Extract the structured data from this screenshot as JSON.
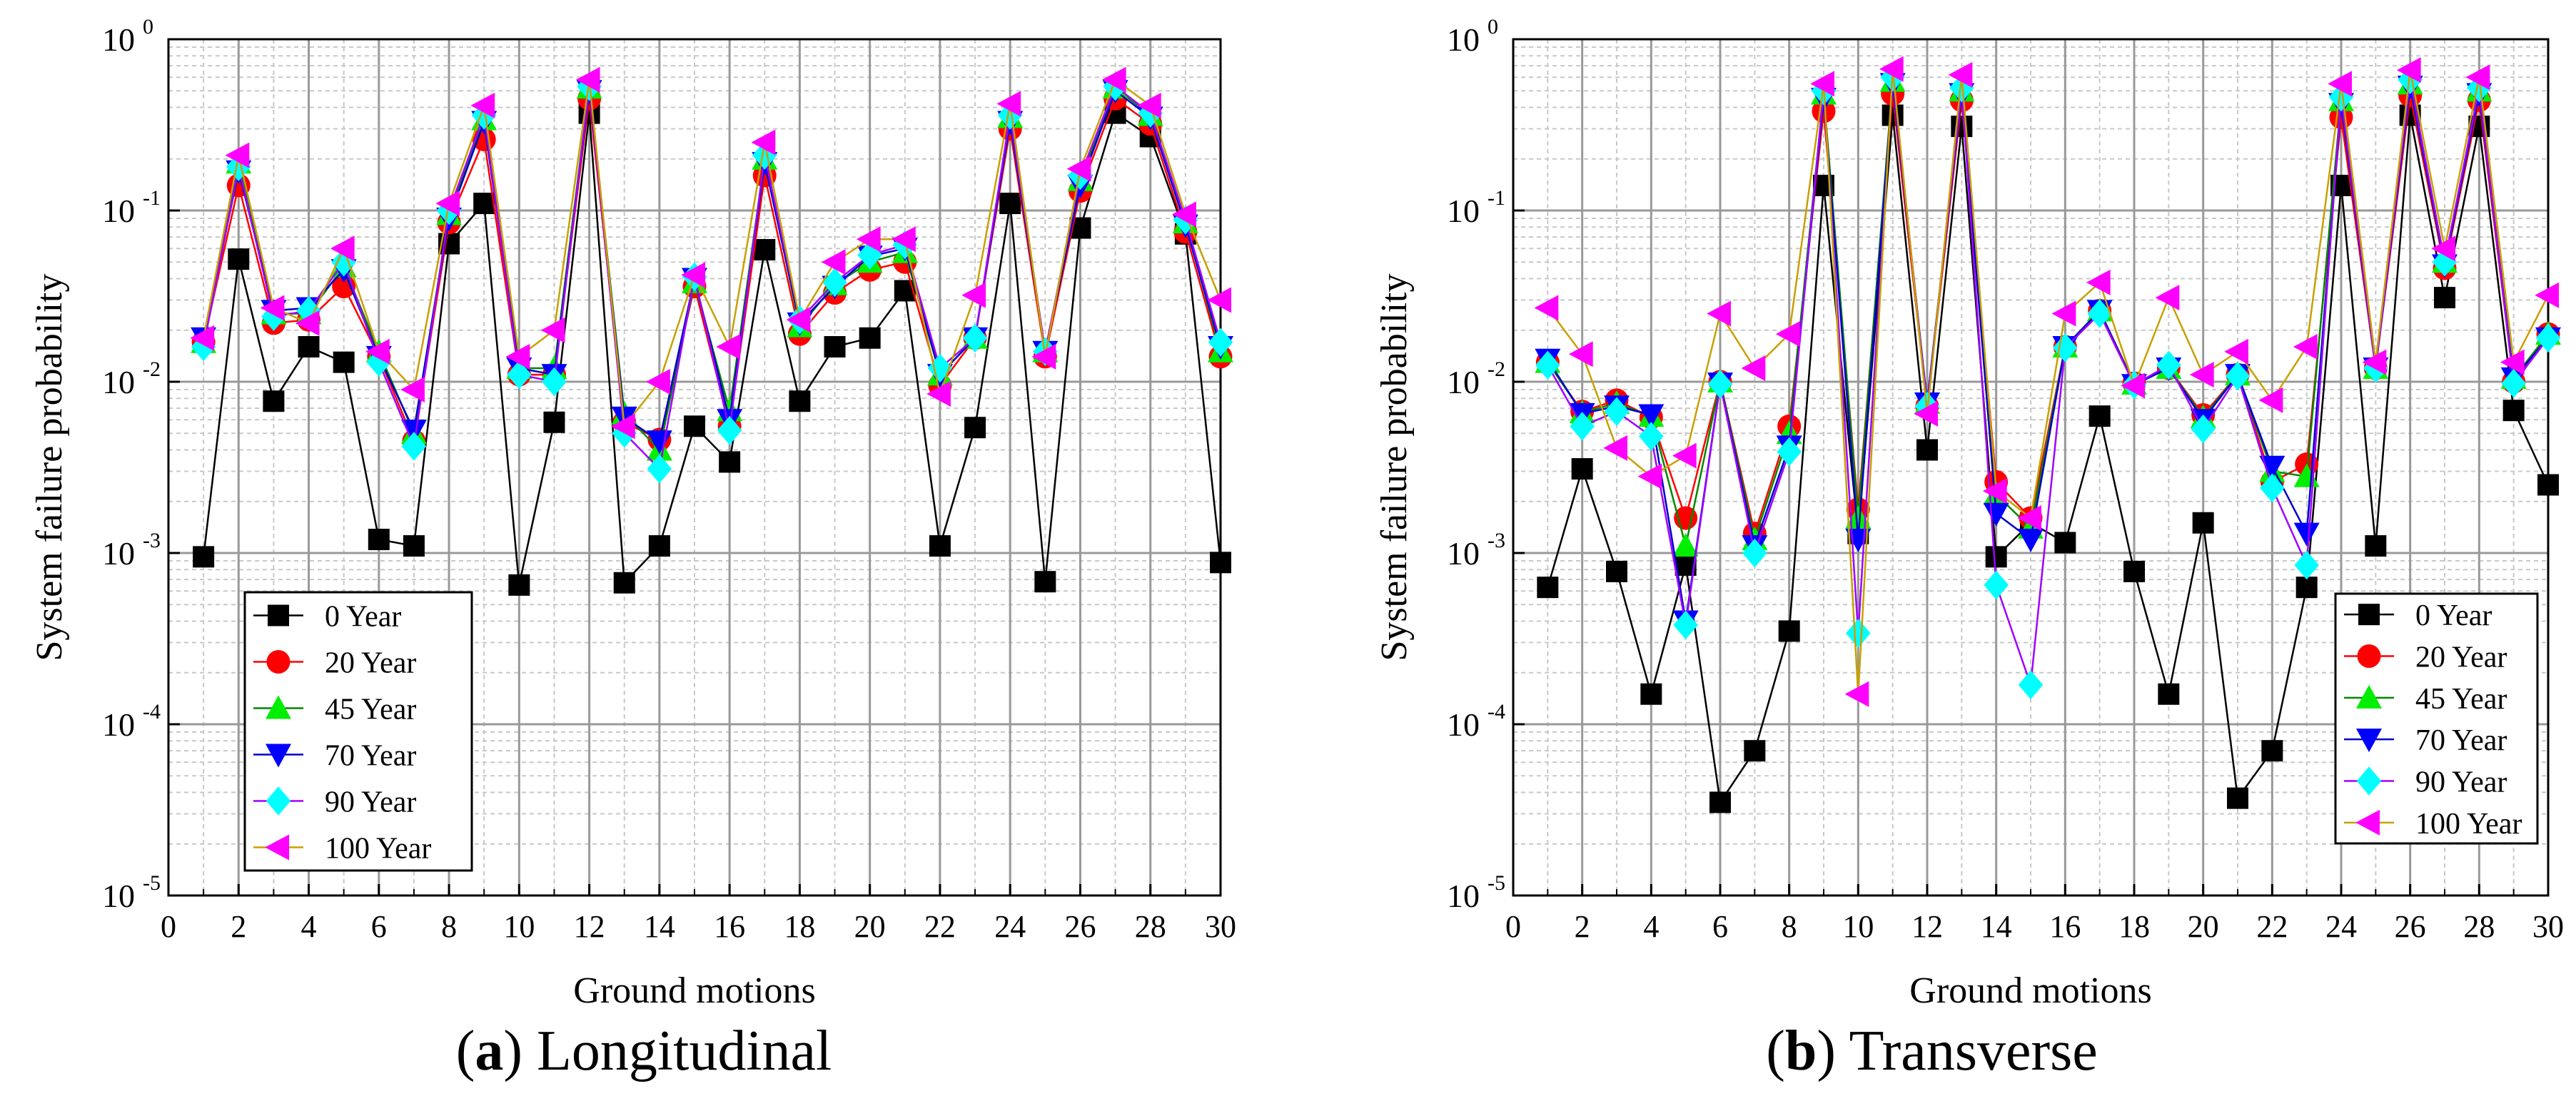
{
  "figure": {
    "panel_a_caption": {
      "letter": "a",
      "text": "Longitudinal"
    },
    "panel_b_caption": {
      "letter": "b",
      "text": "Transverse"
    }
  },
  "colors": {
    "0 Year": "#000000",
    "20 Year": "#ff0000",
    "45 Year": "#00ee00",
    "70 Year": "#0000ff",
    "90 Year": "#00ffff",
    "100 Year": "#ff00ff",
    "line_0 Year": "#000000",
    "line_20 Year": "#ff0000",
    "line_45 Year": "#008800",
    "line_70 Year": "#0000cc",
    "line_90 Year": "#a000ff",
    "line_100 Year": "#c8a000"
  },
  "chart_data": [
    {
      "type": "line",
      "panel": "a",
      "title": "",
      "xlabel": "Ground motions",
      "ylabel": "System failure probability",
      "xlim": [
        0,
        30
      ],
      "ylim": [
        1e-05,
        1
      ],
      "yscale": "log",
      "x_ticks": [
        0,
        2,
        4,
        6,
        8,
        10,
        12,
        14,
        16,
        18,
        20,
        22,
        24,
        26,
        28,
        30
      ],
      "y_tick_labels": [
        "10",
        "10",
        "10",
        "10",
        "10",
        "10"
      ],
      "y_tick_exponents": [
        "-5",
        "-4",
        "-3",
        "-2",
        "-1",
        "0"
      ],
      "y_tick_values": [
        1e-05,
        0.0001,
        0.001,
        0.01,
        0.1,
        1
      ],
      "grid": true,
      "legend": "bottom-left",
      "x": [
        1,
        2,
        3,
        4,
        5,
        6,
        7,
        8,
        9,
        10,
        11,
        12,
        13,
        14,
        15,
        16,
        17,
        18,
        19,
        20,
        21,
        22,
        23,
        24,
        25,
        26,
        27,
        28,
        29,
        30
      ],
      "series": [
        {
          "name": "0 Year",
          "marker": "square",
          "values": [
            0.00095,
            0.052,
            0.0077,
            0.016,
            0.013,
            0.0012,
            0.0011,
            0.064,
            0.11,
            0.00065,
            0.0058,
            0.37,
            0.00067,
            0.0011,
            0.0055,
            0.0034,
            0.059,
            0.0077,
            0.016,
            0.018,
            0.034,
            0.0011,
            0.0054,
            0.11,
            0.00068,
            0.079,
            0.37,
            0.27,
            0.073,
            0.00088
          ]
        },
        {
          "name": "20 Year",
          "marker": "circle",
          "values": [
            0.017,
            0.14,
            0.022,
            0.023,
            0.036,
            0.014,
            0.0045,
            0.085,
            0.26,
            0.011,
            0.011,
            0.45,
            0.0058,
            0.0046,
            0.036,
            0.0055,
            0.16,
            0.019,
            0.033,
            0.045,
            0.05,
            0.0095,
            0.018,
            0.3,
            0.014,
            0.13,
            0.45,
            0.32,
            0.075,
            0.014
          ]
        },
        {
          "name": "45 Year",
          "marker": "triangle-up",
          "values": [
            0.017,
            0.19,
            0.025,
            0.025,
            0.047,
            0.015,
            0.005,
            0.095,
            0.34,
            0.012,
            0.012,
            0.52,
            0.0065,
            0.004,
            0.038,
            0.0068,
            0.2,
            0.021,
            0.037,
            0.05,
            0.057,
            0.011,
            0.018,
            0.35,
            0.015,
            0.15,
            0.52,
            0.36,
            0.085,
            0.015
          ]
        },
        {
          "name": "70 Year",
          "marker": "triangle-down",
          "values": [
            0.018,
            0.17,
            0.026,
            0.027,
            0.045,
            0.014,
            0.0052,
            0.09,
            0.33,
            0.012,
            0.011,
            0.5,
            0.0062,
            0.0045,
            0.04,
            0.006,
            0.19,
            0.022,
            0.036,
            0.054,
            0.06,
            0.011,
            0.018,
            0.33,
            0.015,
            0.14,
            0.5,
            0.35,
            0.082,
            0.016
          ]
        },
        {
          "name": "90 Year",
          "marker": "diamond",
          "values": [
            0.016,
            0.18,
            0.024,
            0.026,
            0.05,
            0.013,
            0.0042,
            0.1,
            0.36,
            0.011,
            0.01,
            0.53,
            0.005,
            0.0031,
            0.041,
            0.0052,
            0.21,
            0.023,
            0.038,
            0.055,
            0.063,
            0.012,
            0.018,
            0.36,
            0.015,
            0.16,
            0.53,
            0.37,
            0.088,
            0.017
          ]
        },
        {
          "name": "100 Year",
          "marker": "triangle-left",
          "values": [
            0.018,
            0.21,
            0.027,
            0.022,
            0.06,
            0.015,
            0.009,
            0.11,
            0.41,
            0.014,
            0.02,
            0.58,
            0.0055,
            0.01,
            0.042,
            0.016,
            0.25,
            0.023,
            0.05,
            0.068,
            0.068,
            0.0085,
            0.032,
            0.42,
            0.014,
            0.175,
            0.58,
            0.41,
            0.095,
            0.03
          ]
        }
      ]
    },
    {
      "type": "line",
      "panel": "b",
      "title": "",
      "xlabel": "Ground motions",
      "ylabel": "System failure probability",
      "xlim": [
        0,
        30
      ],
      "ylim": [
        1e-05,
        1
      ],
      "yscale": "log",
      "x_ticks": [
        0,
        2,
        4,
        6,
        8,
        10,
        12,
        14,
        16,
        18,
        20,
        22,
        24,
        26,
        28,
        30
      ],
      "y_tick_labels": [
        "10",
        "10",
        "10",
        "10",
        "10",
        "10"
      ],
      "y_tick_exponents": [
        "-5",
        "-4",
        "-3",
        "-2",
        "-1",
        "0"
      ],
      "y_tick_values": [
        1e-05,
        0.0001,
        0.001,
        0.01,
        0.1,
        1
      ],
      "grid": true,
      "legend": "bottom-right",
      "x": [
        1,
        2,
        3,
        4,
        5,
        6,
        7,
        8,
        9,
        10,
        11,
        12,
        13,
        14,
        15,
        16,
        17,
        18,
        19,
        20,
        21,
        22,
        23,
        24,
        25,
        26,
        27,
        28,
        29,
        30
      ],
      "series": [
        {
          "name": "0 Year",
          "marker": "square",
          "values": [
            0.00063,
            0.0031,
            0.00078,
            0.00015,
            0.00085,
            3.5e-05,
            7e-05,
            0.00035,
            0.14,
            0.0013,
            0.36,
            0.004,
            0.31,
            0.00095,
            0.0015,
            0.00115,
            0.0063,
            0.00078,
            0.00015,
            0.0015,
            3.7e-05,
            7e-05,
            0.00063,
            0.14,
            0.0011,
            0.36,
            0.031,
            0.31,
            0.0068,
            0.0025
          ]
        },
        {
          "name": "20 Year",
          "marker": "circle",
          "values": [
            0.013,
            0.0067,
            0.0078,
            0.0062,
            0.0016,
            0.01,
            0.0013,
            0.0055,
            0.38,
            0.0018,
            0.48,
            0.0072,
            0.44,
            0.0026,
            0.0016,
            0.016,
            0.026,
            0.0098,
            0.012,
            0.0064,
            0.011,
            0.0026,
            0.0033,
            0.35,
            0.012,
            0.47,
            0.046,
            0.44,
            0.01,
            0.019
          ]
        },
        {
          "name": "45 Year",
          "marker": "triangle-up",
          "values": [
            0.013,
            0.0066,
            0.0075,
            0.0063,
            0.0011,
            0.01,
            0.0012,
            0.005,
            0.48,
            0.0016,
            0.57,
            0.0075,
            0.5,
            0.0022,
            0.0014,
            0.016,
            0.026,
            0.0097,
            0.012,
            0.0062,
            0.011,
            0.003,
            0.0028,
            0.44,
            0.012,
            0.55,
            0.05,
            0.5,
            0.0105,
            0.019
          ]
        },
        {
          "name": "70 Year",
          "marker": "triangle-down",
          "values": [
            0.0135,
            0.0065,
            0.0072,
            0.0064,
            0.0004,
            0.0098,
            0.0011,
            0.0042,
            0.45,
            0.0012,
            0.55,
            0.0075,
            0.48,
            0.0017,
            0.0012,
            0.016,
            0.026,
            0.0096,
            0.012,
            0.006,
            0.011,
            0.0032,
            0.0013,
            0.42,
            0.012,
            0.53,
            0.048,
            0.48,
            0.0105,
            0.018
          ]
        },
        {
          "name": "90 Year",
          "marker": "diamond",
          "values": [
            0.0125,
            0.0055,
            0.0067,
            0.0048,
            0.00038,
            0.0097,
            0.001,
            0.0039,
            0.5,
            0.00034,
            0.6,
            0.0072,
            0.52,
            0.00065,
            0.00017,
            0.0158,
            0.025,
            0.0096,
            0.0125,
            0.0053,
            0.0108,
            0.0024,
            0.00085,
            0.46,
            0.012,
            0.58,
            0.05,
            0.52,
            0.0098,
            0.018
          ]
        },
        {
          "name": "100 Year",
          "marker": "triangle-left",
          "values": [
            0.027,
            0.0145,
            0.0041,
            0.0028,
            0.0037,
            0.025,
            0.012,
            0.019,
            0.55,
            0.00015,
            0.67,
            0.0065,
            0.62,
            0.0023,
            0.0016,
            0.025,
            0.038,
            0.0095,
            0.031,
            0.011,
            0.015,
            0.0078,
            0.016,
            0.55,
            0.013,
            0.66,
            0.06,
            0.6,
            0.013,
            0.032
          ]
        }
      ]
    }
  ]
}
